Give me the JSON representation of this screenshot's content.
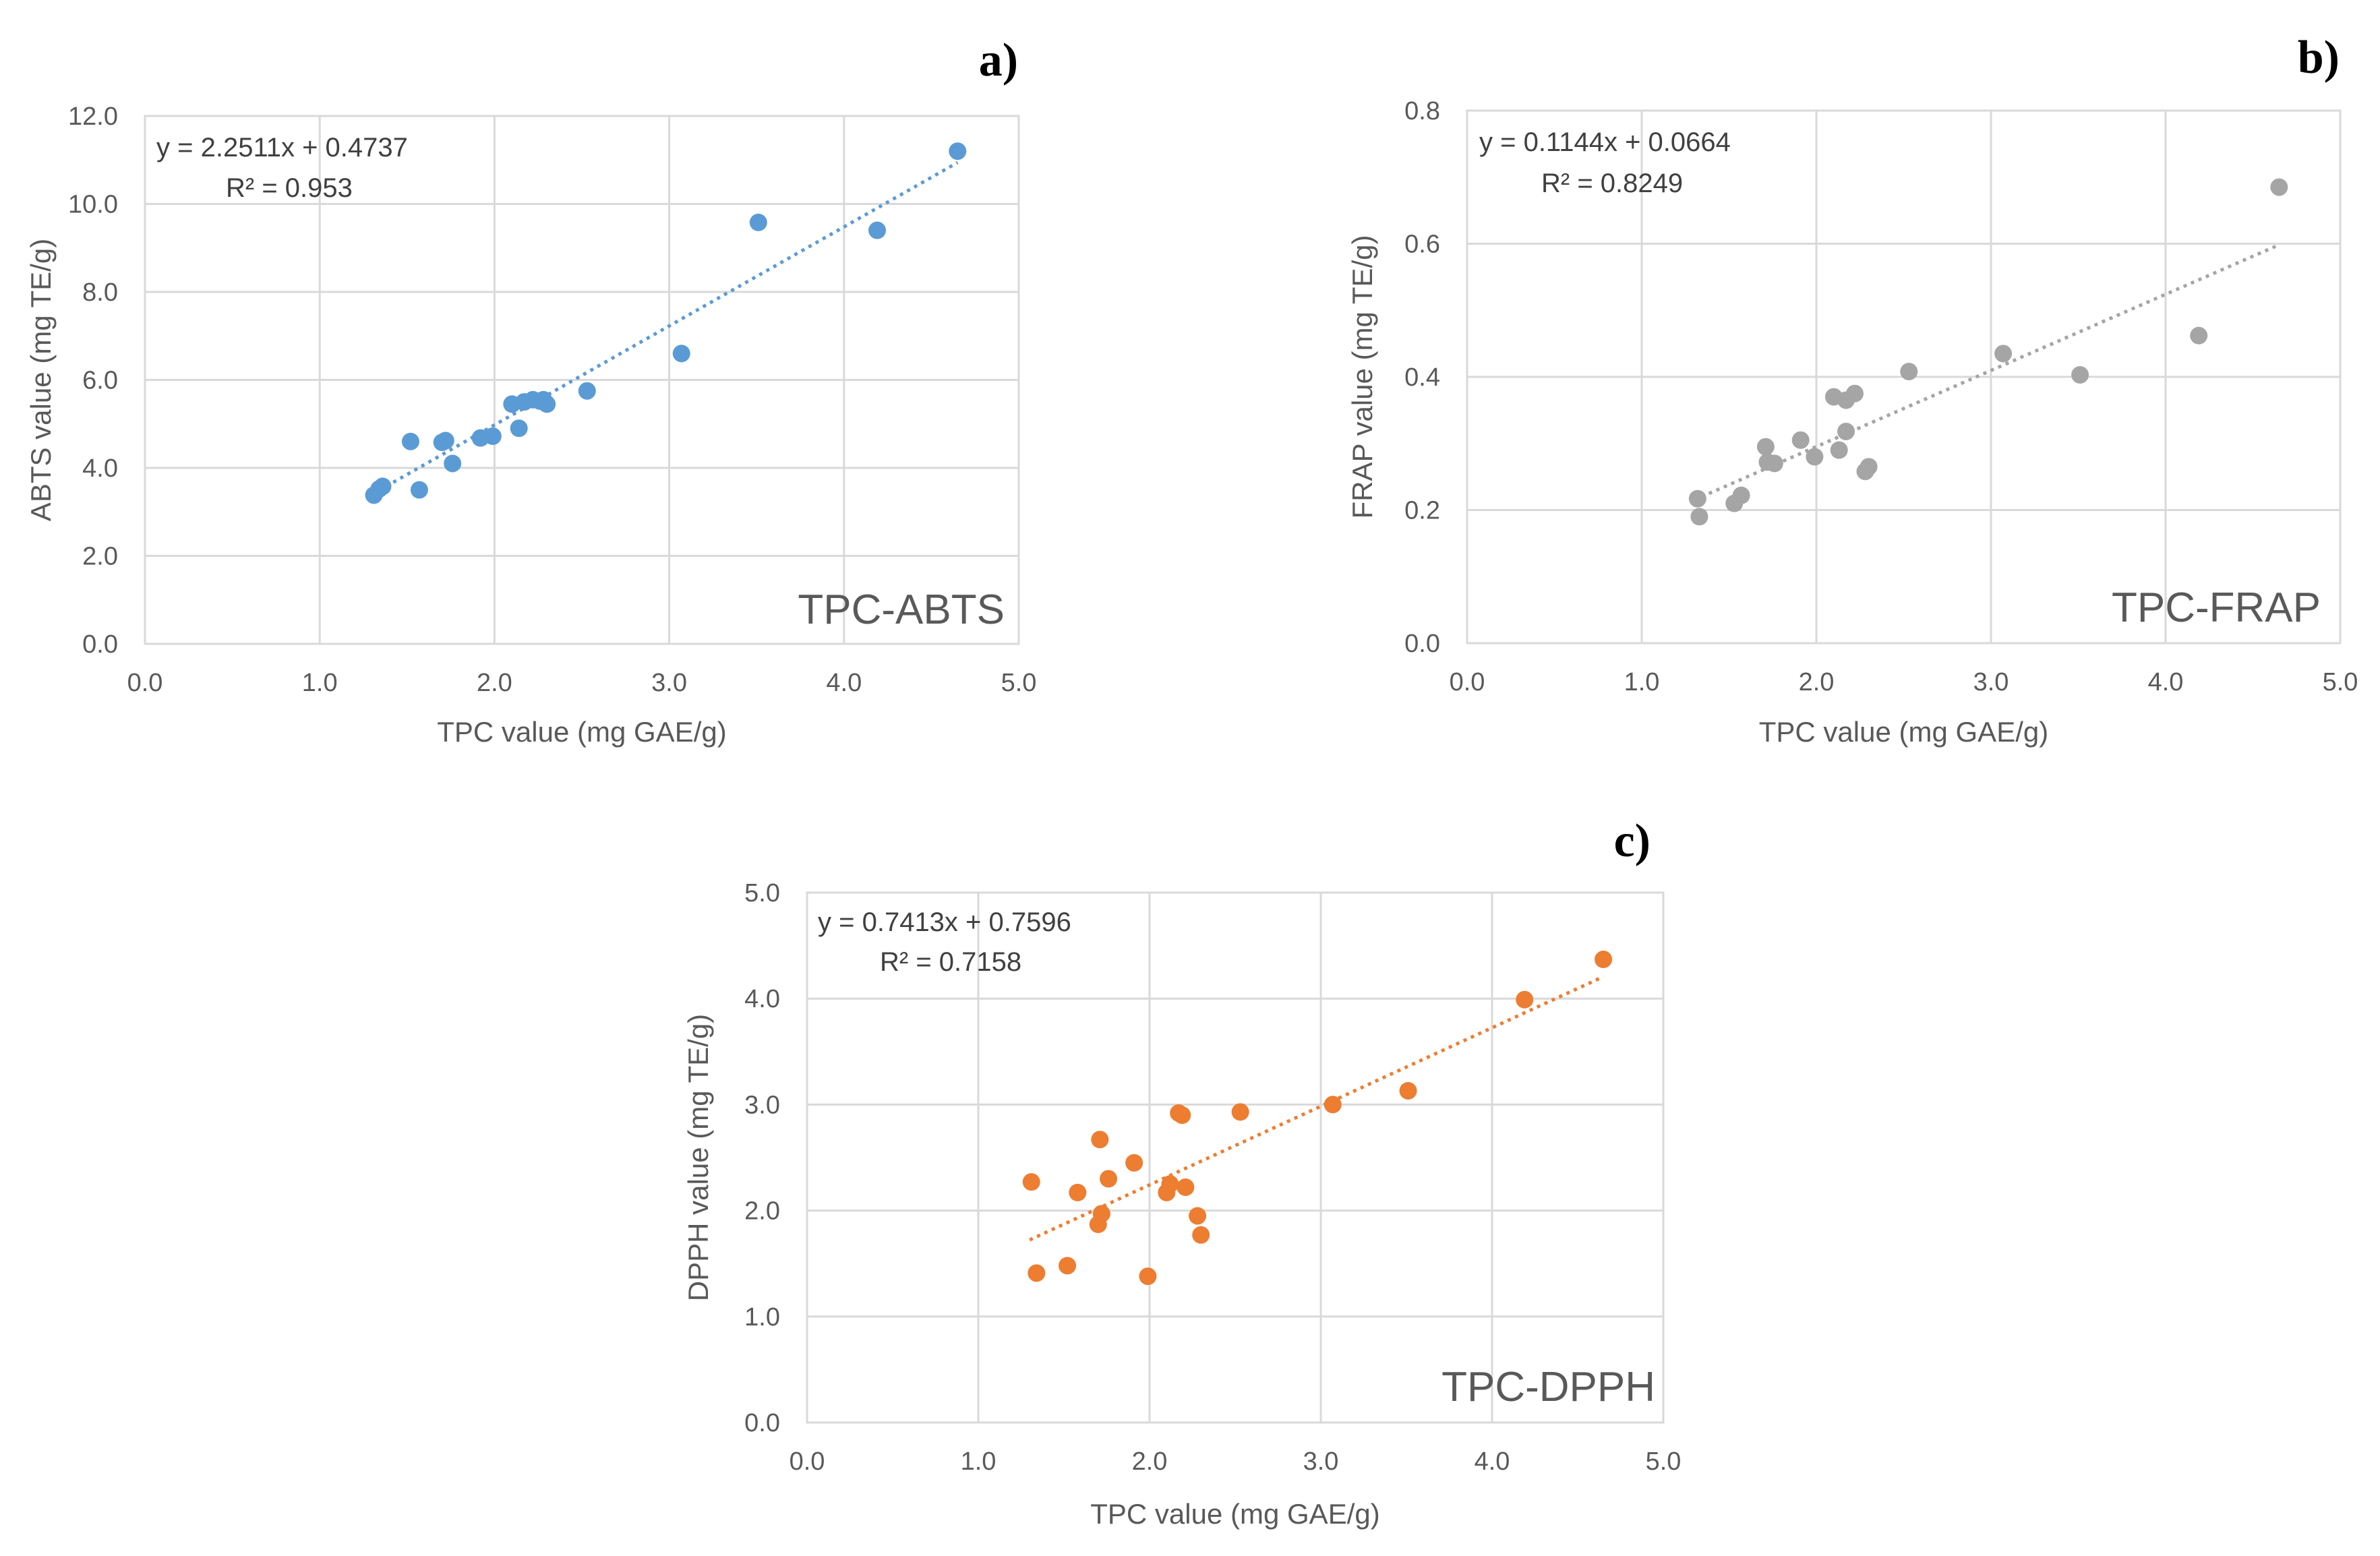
{
  "chart_data": [
    {
      "panel": "a)",
      "type": "scatter",
      "title": "",
      "tag": "TPC-ABTS",
      "xlabel": "TPC value (mg GAE/g)",
      "ylabel": "ABTS  value (mg TE/g)",
      "xlim": [
        0,
        5
      ],
      "ylim": [
        0,
        12
      ],
      "x_ticks": [
        "0.0",
        "1.0",
        "2.0",
        "3.0",
        "4.0",
        "5.0"
      ],
      "y_ticks": [
        "0.0",
        "2.0",
        "4.0",
        "6.0",
        "8.0",
        "10.0",
        "12.0"
      ],
      "grid": true,
      "color": "#5B9BD5",
      "equation": "y = 2.2511x + 0.4737",
      "r2": "R² = 0.953",
      "trendline": {
        "slope": 2.2511,
        "intercept": 0.4737,
        "x_range": [
          1.3,
          4.65
        ]
      },
      "points": [
        [
          1.31,
          3.38
        ],
        [
          1.34,
          3.52
        ],
        [
          1.36,
          3.58
        ],
        [
          1.52,
          4.6
        ],
        [
          1.57,
          3.5
        ],
        [
          1.7,
          4.58
        ],
        [
          1.72,
          4.62
        ],
        [
          1.76,
          4.1
        ],
        [
          1.92,
          4.68
        ],
        [
          1.99,
          4.72
        ],
        [
          2.1,
          5.45
        ],
        [
          2.14,
          4.9
        ],
        [
          2.17,
          5.5
        ],
        [
          2.22,
          5.55
        ],
        [
          2.26,
          5.52
        ],
        [
          2.28,
          5.55
        ],
        [
          2.3,
          5.45
        ],
        [
          2.53,
          5.75
        ],
        [
          3.07,
          6.6
        ],
        [
          3.51,
          9.58
        ],
        [
          4.19,
          9.4
        ],
        [
          4.65,
          11.2
        ]
      ]
    },
    {
      "panel": "b)",
      "type": "scatter",
      "title": "",
      "tag": "TPC-FRAP",
      "xlabel": "TPC value (mg GAE/g)",
      "ylabel": "FRAP value (mg TE/g)",
      "xlim": [
        0,
        5
      ],
      "ylim": [
        0,
        0.8
      ],
      "x_ticks": [
        "0.0",
        "1.0",
        "2.0",
        "3.0",
        "4.0",
        "5.0"
      ],
      "y_ticks": [
        "0.0",
        "0.2",
        "0.4",
        "0.6",
        "0.8"
      ],
      "grid": true,
      "color": "#A5A5A5",
      "equation": "y = 0.1144x + 0.0664",
      "r2": "R² = 0.8249",
      "trendline": {
        "slope": 0.1144,
        "intercept": 0.0664,
        "x_range": [
          1.3,
          4.65
        ]
      },
      "points": [
        [
          1.32,
          0.217
        ],
        [
          1.33,
          0.19
        ],
        [
          1.53,
          0.21
        ],
        [
          1.57,
          0.222
        ],
        [
          1.71,
          0.295
        ],
        [
          1.72,
          0.272
        ],
        [
          1.76,
          0.27
        ],
        [
          1.91,
          0.305
        ],
        [
          1.99,
          0.28
        ],
        [
          2.1,
          0.37
        ],
        [
          2.13,
          0.29
        ],
        [
          2.17,
          0.318
        ],
        [
          2.17,
          0.365
        ],
        [
          2.22,
          0.375
        ],
        [
          2.28,
          0.258
        ],
        [
          2.3,
          0.265
        ],
        [
          2.53,
          0.408
        ],
        [
          3.07,
          0.435
        ],
        [
          3.51,
          0.403
        ],
        [
          4.19,
          0.462
        ],
        [
          4.65,
          0.685
        ]
      ]
    },
    {
      "panel": "c)",
      "type": "scatter",
      "title": "",
      "tag": "TPC-DPPH",
      "xlabel": "TPC value (mg GAE/g)",
      "ylabel": "DPPH value (mg TE/g)",
      "xlim": [
        0,
        5
      ],
      "ylim": [
        0,
        5
      ],
      "x_ticks": [
        "0.0",
        "1.0",
        "2.0",
        "3.0",
        "4.0",
        "5.0"
      ],
      "y_ticks": [
        "0.0",
        "1.0",
        "2.0",
        "3.0",
        "4.0",
        "5.0"
      ],
      "grid": true,
      "color": "#ED7D31",
      "equation": "y = 0.7413x + 0.7596",
      "r2": "R² = 0.7158",
      "trendline": {
        "slope": 0.7413,
        "intercept": 0.7596,
        "x_range": [
          1.3,
          4.65
        ]
      },
      "points": [
        [
          1.31,
          2.27
        ],
        [
          1.34,
          1.41
        ],
        [
          1.52,
          1.48
        ],
        [
          1.58,
          2.17
        ],
        [
          1.7,
          1.87
        ],
        [
          1.71,
          2.67
        ],
        [
          1.72,
          1.97
        ],
        [
          1.76,
          2.3
        ],
        [
          1.91,
          2.45
        ],
        [
          1.99,
          1.38
        ],
        [
          2.1,
          2.17
        ],
        [
          2.12,
          2.25
        ],
        [
          2.17,
          2.92
        ],
        [
          2.19,
          2.9
        ],
        [
          2.21,
          2.22
        ],
        [
          2.28,
          1.95
        ],
        [
          2.3,
          1.77
        ],
        [
          2.53,
          2.93
        ],
        [
          3.07,
          3.0
        ],
        [
          3.51,
          3.13
        ],
        [
          4.19,
          3.99
        ],
        [
          4.65,
          4.37
        ]
      ]
    }
  ]
}
